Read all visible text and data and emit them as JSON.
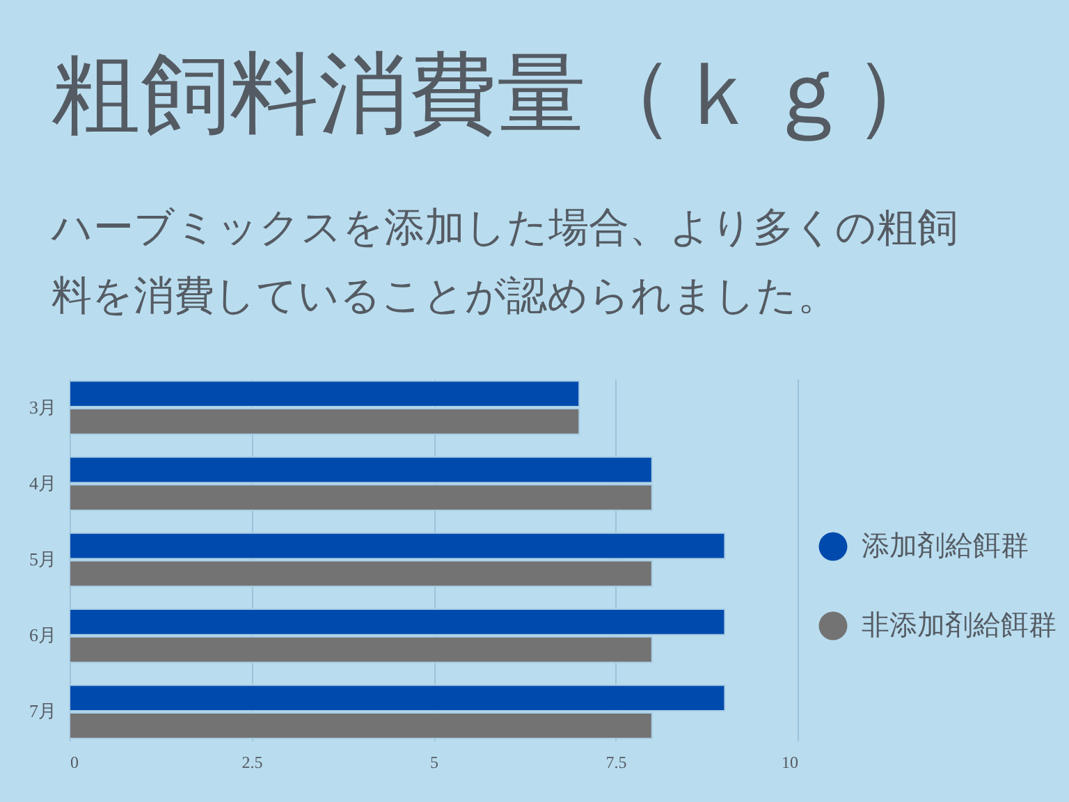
{
  "chart_data": {
    "type": "bar",
    "orientation": "horizontal",
    "title": "粗飼料消費量（ｋｇ）",
    "subtitle": "ハーブミックスを添加した場合、より多くの粗飼料を消費していることが認められました。",
    "categories": [
      "3月",
      "4月",
      "5月",
      "6月",
      "7月"
    ],
    "series": [
      {
        "name": "添加剤給餌群",
        "color": "#004aad",
        "values": [
          7,
          8,
          9,
          9,
          9
        ]
      },
      {
        "name": "非添加剤給餌群",
        "color": "#737373",
        "values": [
          7,
          8,
          8,
          8,
          8
        ]
      }
    ],
    "xlim": [
      0,
      10
    ],
    "xticks": [
      0,
      2.5,
      5,
      7.5,
      10
    ],
    "grid": "x",
    "legend": "right"
  }
}
